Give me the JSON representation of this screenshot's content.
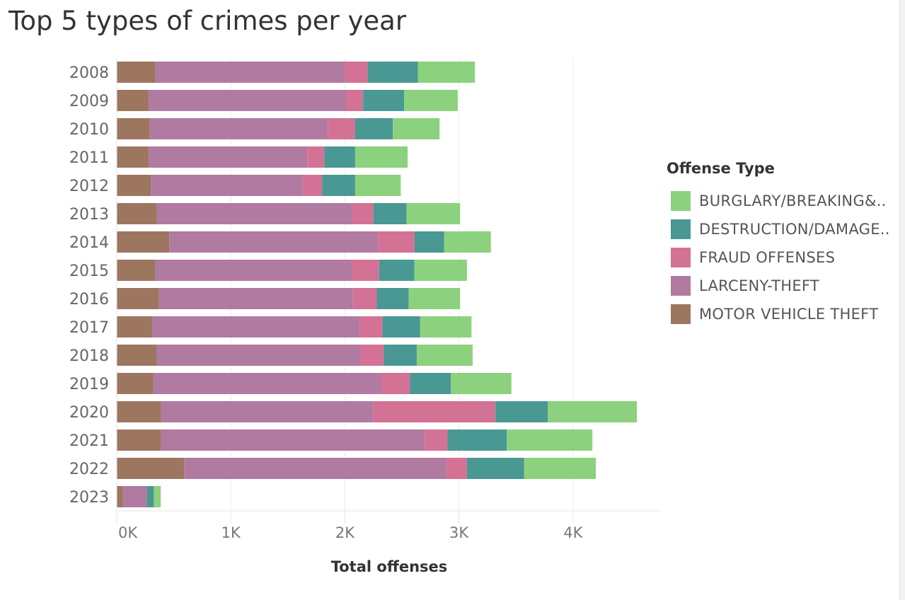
{
  "title": "Top 5 types of crimes per year",
  "legend": {
    "title": "Offense Type",
    "items": [
      {
        "label": "BURGLARY/BREAKING&..",
        "color": "#8CD17D"
      },
      {
        "label": "DESTRUCTION/DAMAGE..",
        "color": "#499894"
      },
      {
        "label": "FRAUD OFFENSES",
        "color": "#D37295"
      },
      {
        "label": "LARCENY-THEFT",
        "color": "#B07AA1"
      },
      {
        "label": "MOTOR VEHICLE THEFT",
        "color": "#9D7660"
      }
    ]
  },
  "chart_data": {
    "type": "bar",
    "orientation": "horizontal",
    "stacked": true,
    "title": "Top 5 types of crimes per year",
    "xlabel": "Total offenses",
    "ylabel": "",
    "xlim": [
      0,
      4800
    ],
    "xticks": [
      "0K",
      "1K",
      "2K",
      "3K",
      "4K"
    ],
    "xtick_values": [
      0,
      1000,
      2000,
      3000,
      4000
    ],
    "grid": "vertical",
    "legend_position": "right",
    "categories": [
      "2008",
      "2009",
      "2010",
      "2011",
      "2012",
      "2013",
      "2014",
      "2015",
      "2016",
      "2017",
      "2018",
      "2019",
      "2020",
      "2021",
      "2022",
      "2023"
    ],
    "series": [
      {
        "name": "MOTOR VEHICLE THEFT",
        "color": "#9D7660",
        "values": [
          340,
          280,
          290,
          280,
          300,
          350,
          460,
          340,
          370,
          310,
          350,
          320,
          390,
          390,
          590,
          55
        ]
      },
      {
        "name": "LARCENY-THEFT",
        "color": "#B07AA1",
        "values": [
          1660,
          1730,
          1560,
          1390,
          1330,
          1710,
          1830,
          1720,
          1700,
          1820,
          1790,
          2000,
          1860,
          2310,
          2300,
          210
        ]
      },
      {
        "name": "FRAUD OFFENSES",
        "color": "#D37295",
        "values": [
          200,
          150,
          240,
          150,
          170,
          190,
          320,
          240,
          210,
          200,
          200,
          250,
          1070,
          200,
          180,
          0
        ]
      },
      {
        "name": "DESTRUCTION/DAMAGE..",
        "color": "#499894",
        "values": [
          440,
          360,
          330,
          270,
          290,
          290,
          260,
          310,
          280,
          330,
          290,
          360,
          460,
          520,
          500,
          60
        ]
      },
      {
        "name": "BURGLARY/BREAKING&..",
        "color": "#8CD17D",
        "values": [
          500,
          470,
          410,
          460,
          400,
          470,
          410,
          460,
          450,
          450,
          490,
          530,
          780,
          750,
          630,
          60
        ]
      }
    ]
  }
}
